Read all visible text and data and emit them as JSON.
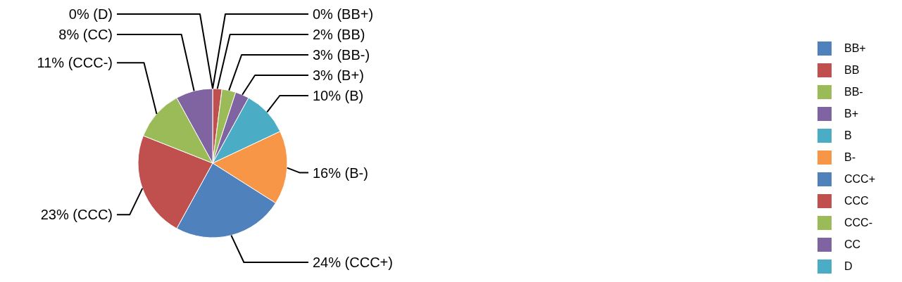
{
  "chart_data": {
    "type": "pie",
    "categories": [
      "BB+",
      "BB",
      "BB-",
      "B+",
      "B",
      "B-",
      "CCC+",
      "CCC",
      "CCC-",
      "CC",
      "D"
    ],
    "values": [
      0,
      2,
      3,
      3,
      10,
      16,
      24,
      23,
      11,
      8,
      0
    ],
    "colors": [
      "#4f81bd",
      "#c0504d",
      "#9bbb59",
      "#8064a2",
      "#4bacc6",
      "#f79646",
      "#4f81bd",
      "#c0504d",
      "#9bbb59",
      "#8064a2",
      "#4bacc6"
    ],
    "value_labels": [
      "0% (BB+)",
      "2% (BB)",
      "3% (BB-)",
      "3% (B+)",
      "10% (B)",
      "16% (B-)",
      "24% (CCC+)",
      "23% (CCC)",
      "11% (CCC-)",
      "8% (CC)",
      "0% (D)"
    ],
    "legend": "right"
  }
}
